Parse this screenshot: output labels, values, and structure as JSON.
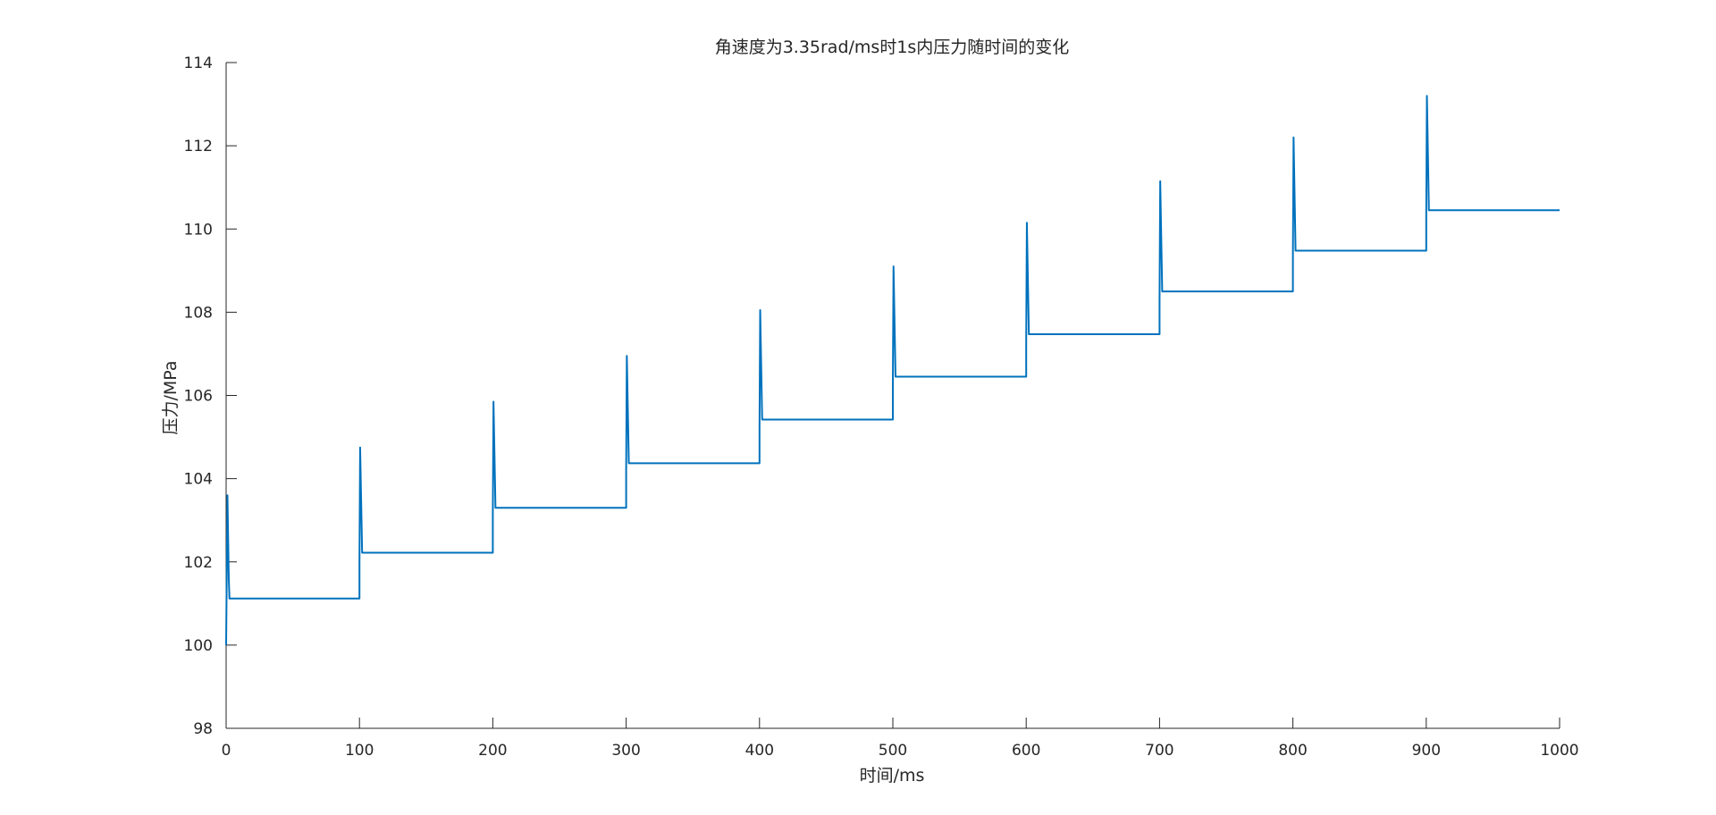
{
  "chart_data": {
    "type": "line",
    "title": "角速度为3.35rad/ms时1s内压力随时间的变化",
    "xlabel": "时间/ms",
    "ylabel": "压力/MPa",
    "xlim": [
      0,
      1000
    ],
    "ylim": [
      98,
      114
    ],
    "xticks": [
      0,
      100,
      200,
      300,
      400,
      500,
      600,
      700,
      800,
      900,
      1000
    ],
    "yticks": [
      98,
      100,
      102,
      104,
      106,
      108,
      110,
      112,
      114
    ],
    "grid": false,
    "color": "#0072BD",
    "series": [
      {
        "x": [
          0,
          1,
          2,
          2.5,
          100,
          100,
          100.5,
          102,
          200,
          200,
          200.5,
          202,
          300,
          300,
          300.5,
          302,
          400,
          400,
          400.5,
          402,
          500,
          500,
          500.5,
          502,
          600,
          600,
          600.5,
          602,
          700,
          700,
          700.5,
          702,
          800,
          800,
          800.5,
          802,
          900,
          900,
          900.5,
          902,
          1000
        ],
        "y": [
          100.0,
          103.6,
          101.6,
          101.12,
          101.12,
          102.0,
          104.75,
          102.22,
          102.22,
          103.1,
          105.85,
          103.3,
          103.3,
          104.2,
          106.95,
          104.37,
          104.37,
          105.2,
          108.05,
          105.42,
          105.42,
          106.3,
          109.1,
          106.45,
          106.45,
          107.3,
          110.15,
          107.47,
          107.47,
          108.3,
          111.15,
          108.5,
          108.5,
          109.3,
          112.2,
          109.48,
          109.48,
          110.3,
          113.2,
          110.45,
          110.45
        ]
      }
    ]
  }
}
